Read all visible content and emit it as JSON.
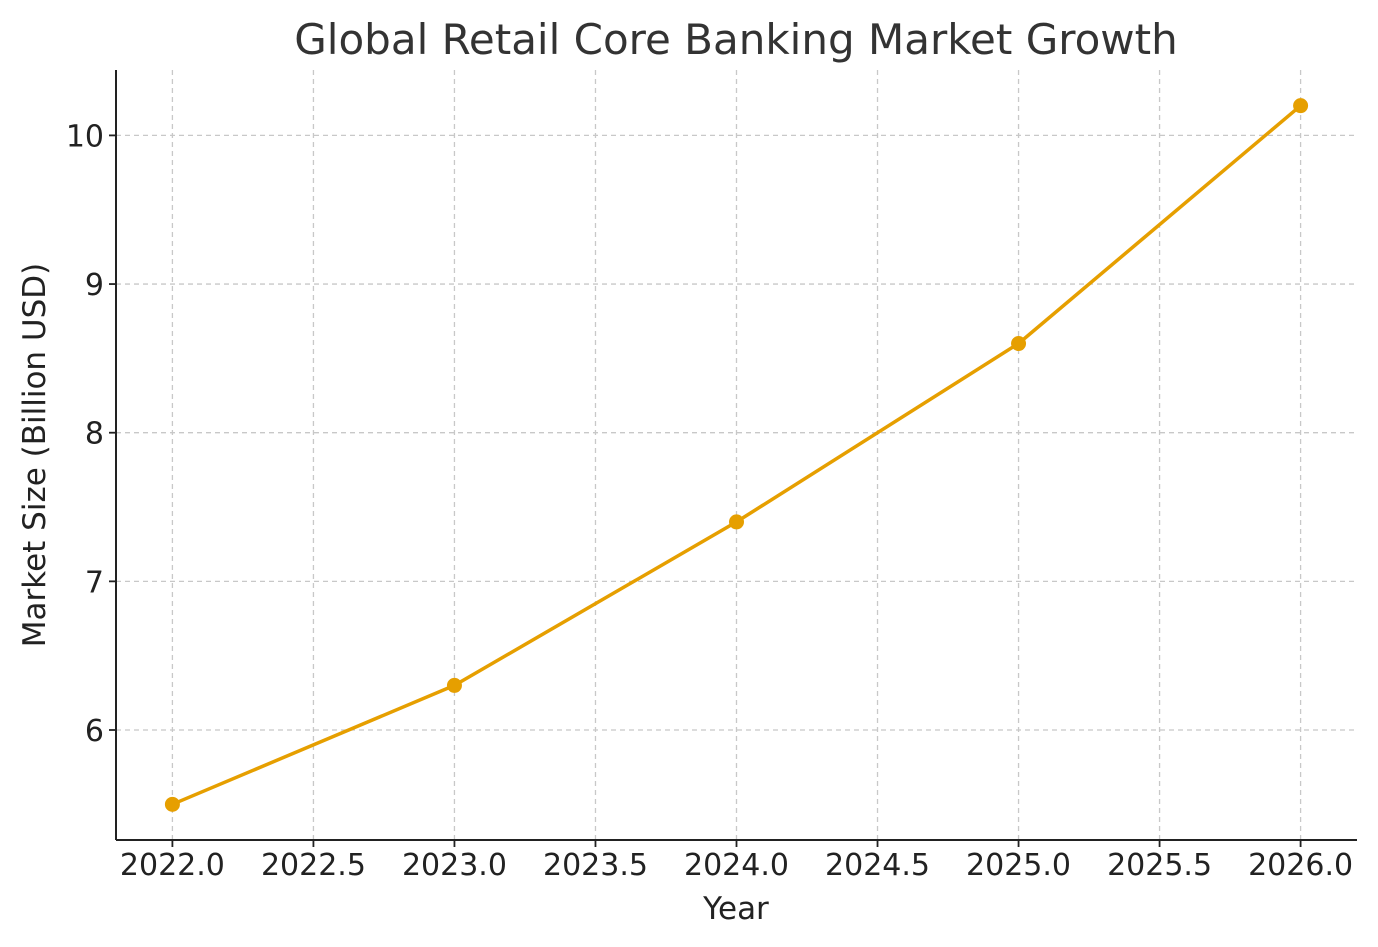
{
  "chart_data": {
    "type": "line",
    "title": "Global Retail Core Banking Market Growth",
    "xlabel": "Year",
    "ylabel": "Market Size (Billion USD)",
    "x": [
      2022,
      2023,
      2024,
      2025,
      2026
    ],
    "series": [
      {
        "values": [
          5.5,
          6.3,
          7.4,
          8.6,
          10.2
        ],
        "color": "#E69F00",
        "marker": "circle"
      }
    ],
    "xlim": [
      2021.8,
      2026.2
    ],
    "ylim": [
      5.26,
      10.44
    ],
    "xticks": [
      2022.0,
      2022.5,
      2023.0,
      2023.5,
      2024.0,
      2024.5,
      2025.0,
      2025.5,
      2026.0
    ],
    "xtick_labels": [
      "2022.0",
      "2022.5",
      "2023.0",
      "2023.5",
      "2024.0",
      "2024.5",
      "2025.0",
      "2025.5",
      "2026.0"
    ],
    "yticks": [
      6,
      7,
      8,
      9,
      10
    ],
    "ytick_labels": [
      "6",
      "7",
      "8",
      "9",
      "10"
    ],
    "grid": true,
    "spines": "left-bottom",
    "legend": "none"
  }
}
